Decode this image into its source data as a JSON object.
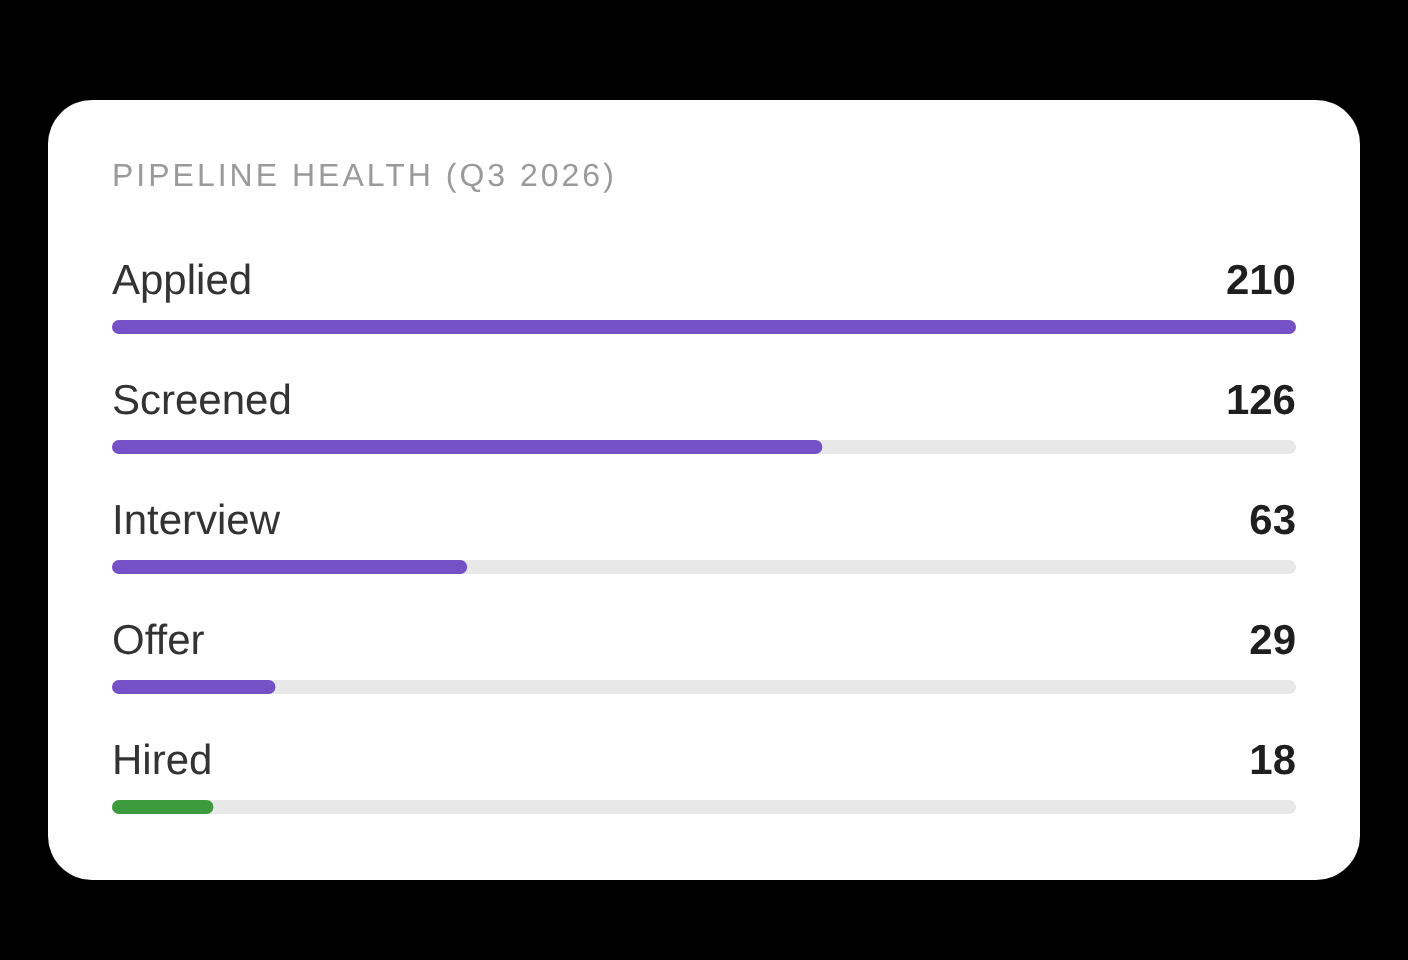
{
  "chart_data": {
    "type": "bar",
    "orientation": "horizontal",
    "title": "PIPELINE HEALTH (Q3 2026)",
    "categories": [
      "Applied",
      "Screened",
      "Interview",
      "Offer",
      "Hired"
    ],
    "values": [
      210,
      126,
      63,
      29,
      18
    ],
    "colors": [
      "#7452c6",
      "#7452c6",
      "#7452c6",
      "#7452c6",
      "#3d9a3d"
    ],
    "data_labels": true
  }
}
